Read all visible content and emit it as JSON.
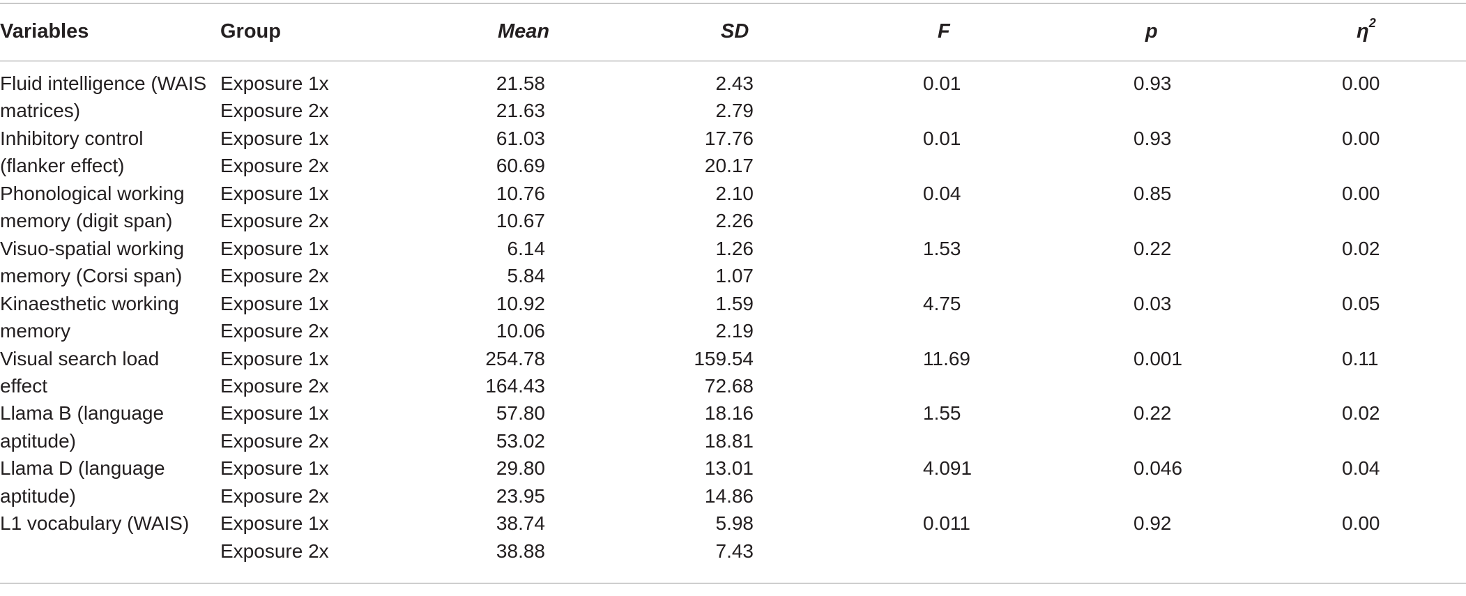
{
  "headers": {
    "variables": "Variables",
    "group": "Group",
    "mean": "Mean",
    "sd": "SD",
    "f": "F",
    "p": "p",
    "eta_base": "η",
    "eta_sup": "2"
  },
  "rows": [
    {
      "variable": "Fluid intelligence (WAIS",
      "group": "Exposure 1x",
      "mean": "21.58",
      "sd": "2.43",
      "f": "0.01",
      "p": "0.93",
      "eta": "0.00"
    },
    {
      "variable": "matrices)",
      "group": "Exposure 2x",
      "mean": "21.63",
      "sd": "2.79",
      "f": "",
      "p": "",
      "eta": ""
    },
    {
      "variable": "Inhibitory control",
      "group": "Exposure 1x",
      "mean": "61.03",
      "sd": "17.76",
      "f": "0.01",
      "p": "0.93",
      "eta": "0.00"
    },
    {
      "variable": "(flanker effect)",
      "group": "Exposure 2x",
      "mean": "60.69",
      "sd": "20.17",
      "f": "",
      "p": "",
      "eta": ""
    },
    {
      "variable": "Phonological working",
      "group": "Exposure 1x",
      "mean": "10.76",
      "sd": "2.10",
      "f": "0.04",
      "p": "0.85",
      "eta": "0.00"
    },
    {
      "variable": "memory (digit span)",
      "group": "Exposure 2x",
      "mean": "10.67",
      "sd": "2.26",
      "f": "",
      "p": "",
      "eta": ""
    },
    {
      "variable": "Visuo-spatial working",
      "group": "Exposure 1x",
      "mean": "6.14",
      "sd": "1.26",
      "f": "1.53",
      "p": "0.22",
      "eta": "0.02"
    },
    {
      "variable": "memory (Corsi span)",
      "group": "Exposure 2x",
      "mean": "5.84",
      "sd": "1.07",
      "f": "",
      "p": "",
      "eta": ""
    },
    {
      "variable": "Kinaesthetic working",
      "group": "Exposure 1x",
      "mean": "10.92",
      "sd": "1.59",
      "f": "4.75",
      "p": "0.03",
      "eta": "0.05"
    },
    {
      "variable": "memory",
      "group": "Exposure 2x",
      "mean": "10.06",
      "sd": "2.19",
      "f": "",
      "p": "",
      "eta": ""
    },
    {
      "variable": "Visual search load",
      "group": "Exposure 1x",
      "mean": "254.78",
      "sd": "159.54",
      "f": "11.69",
      "p": "0.001",
      "eta": "0.11"
    },
    {
      "variable": "effect",
      "group": "Exposure 2x",
      "mean": "164.43",
      "sd": "72.68",
      "f": "",
      "p": "",
      "eta": ""
    },
    {
      "variable": "Llama B (language",
      "group": "Exposure 1x",
      "mean": "57.80",
      "sd": "18.16",
      "f": "1.55",
      "p": "0.22",
      "eta": "0.02"
    },
    {
      "variable": "aptitude)",
      "group": "Exposure 2x",
      "mean": "53.02",
      "sd": "18.81",
      "f": "",
      "p": "",
      "eta": ""
    },
    {
      "variable": "Llama D (language",
      "group": "Exposure 1x",
      "mean": "29.80",
      "sd": "13.01",
      "f": "4.091",
      "p": "0.046",
      "eta": "0.04"
    },
    {
      "variable": "aptitude)",
      "group": "Exposure 2x",
      "mean": "23.95",
      "sd": "14.86",
      "f": "",
      "p": "",
      "eta": ""
    },
    {
      "variable": "L1 vocabulary (WAIS)",
      "group": "Exposure 1x",
      "mean": "38.74",
      "sd": "5.98",
      "f": "0.011",
      "p": "0.92",
      "eta": "0.00"
    },
    {
      "variable": "",
      "group": "Exposure 2x",
      "mean": "38.88",
      "sd": "7.43",
      "f": "",
      "p": "",
      "eta": ""
    }
  ]
}
